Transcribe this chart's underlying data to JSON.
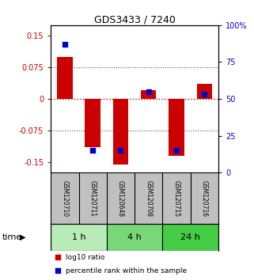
{
  "title": "GDS3433 / 7240",
  "samples": [
    "GSM120710",
    "GSM120711",
    "GSM120648",
    "GSM120708",
    "GSM120715",
    "GSM120716"
  ],
  "log10_ratio": [
    0.1,
    -0.115,
    -0.155,
    0.02,
    -0.135,
    0.035
  ],
  "percentile_rank": [
    87,
    15,
    15,
    55,
    15,
    53
  ],
  "time_groups": [
    {
      "label": "1 h",
      "start": 0,
      "end": 2,
      "color": "#b8ebb8"
    },
    {
      "label": "4 h",
      "start": 2,
      "end": 4,
      "color": "#78d878"
    },
    {
      "label": "24 h",
      "start": 4,
      "end": 6,
      "color": "#44cc44"
    }
  ],
  "ylim_left": [
    -0.175,
    0.175
  ],
  "ylim_right": [
    0,
    100
  ],
  "yticks_left": [
    -0.15,
    -0.075,
    0,
    0.075,
    0.15
  ],
  "ytick_labels_left": [
    "-0.15",
    "-0.075",
    "0",
    "0.075",
    "0.15"
  ],
  "yticks_right": [
    0,
    25,
    50,
    75,
    100
  ],
  "ytick_labels_right": [
    "0",
    "25",
    "50",
    "75",
    "100%"
  ],
  "bar_color": "#cc0000",
  "square_color": "#0000cc",
  "bar_width": 0.55,
  "square_size": 18,
  "grid_color": "#555555",
  "zero_line_color": "#cc0000",
  "bg_color": "#ffffff",
  "sample_box_color": "#c0c0c0",
  "left_axis_color": "#cc0000",
  "right_axis_color": "#0000cc",
  "legend_items": [
    {
      "color": "#cc0000",
      "label": "log10 ratio"
    },
    {
      "color": "#0000cc",
      "label": "percentile rank within the sample"
    }
  ],
  "time_label": "time",
  "figsize": [
    3.21,
    3.54
  ],
  "dpi": 100
}
